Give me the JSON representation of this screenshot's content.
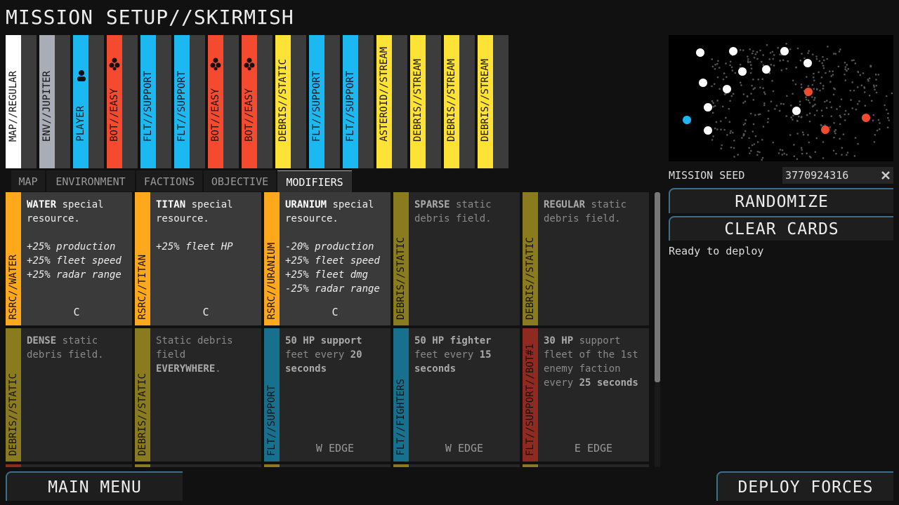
{
  "title": "MISSION SETUP//SKIRMISH",
  "deck": [
    {
      "label": "MAP//REGULAR",
      "color": "#ffffff"
    },
    {
      "label": "ENV//JUPITER",
      "color": "#a9adb5"
    },
    {
      "label": "PLAYER",
      "color": "#1cb8f2",
      "icon": "player"
    },
    {
      "label": "BOT//EASY",
      "color": "#f44a30",
      "icon": "bot"
    },
    {
      "label": "FLT//SUPPORT",
      "color": "#1cb8f2"
    },
    {
      "label": "FLT//SUPPORT",
      "color": "#1cb8f2"
    },
    {
      "label": "BOT//EASY",
      "color": "#f44a30",
      "icon": "bot"
    },
    {
      "label": "BOT//EASY",
      "color": "#f44a30",
      "icon": "bot"
    },
    {
      "label": "DEBRIS//STATIC",
      "color": "#ffe236"
    },
    {
      "label": "FLT//SUPPORT",
      "color": "#1cb8f2"
    },
    {
      "label": "FLT//SUPPORT",
      "color": "#1cb8f2"
    },
    {
      "label": "ASTEROID//STREAM",
      "color": "#ffe236"
    },
    {
      "label": "DEBRIS//STREAM",
      "color": "#ffe236"
    },
    {
      "label": "DEBRIS//STREAM",
      "color": "#ffe236"
    },
    {
      "label": "DEBRIS//STREAM",
      "color": "#ffe236"
    }
  ],
  "tabs": [
    "MAP",
    "ENVIRONMENT",
    "FACTIONS",
    "OBJECTIVE",
    "MODIFIERS"
  ],
  "active_tab": 4,
  "cards": [
    {
      "side": "RSRC//WATER",
      "color": "#ffa81c",
      "active": true,
      "body": [
        {
          "text": "WATER",
          "bold": true
        },
        {
          "text": " special resource."
        }
      ],
      "effects": [
        "+25% production",
        "+25% fleet speed",
        "+25% radar range"
      ],
      "footer": "C"
    },
    {
      "side": "RSRC//TITAN",
      "color": "#ffa81c",
      "active": true,
      "body": [
        {
          "text": "TITAN",
          "bold": true
        },
        {
          "text": " special resource."
        }
      ],
      "effects": [
        "+25% fleet HP"
      ],
      "footer": "C"
    },
    {
      "side": "RSRC//URANIUM",
      "color": "#ffa81c",
      "active": true,
      "body": [
        {
          "text": "URANIUM",
          "bold": true
        },
        {
          "text": " special resource."
        }
      ],
      "effects": [
        "-20% production",
        "+25% fleet speed",
        "+25% fleet dmg",
        "-25% radar range"
      ],
      "footer": "C"
    },
    {
      "side": "DEBRIS//STATIC",
      "color": "#8a7b1e",
      "body": [
        {
          "text": "SPARSE",
          "bold": true
        },
        {
          "text": " static debris field."
        }
      ]
    },
    {
      "side": "DEBRIS//STATIC",
      "color": "#8a7b1e",
      "body": [
        {
          "text": "REGULAR",
          "bold": true
        },
        {
          "text": " static debris field."
        }
      ]
    },
    {
      "side": "DEBRIS//STATIC",
      "color": "#8a7b1e",
      "body": [
        {
          "text": "DENSE",
          "bold": true
        },
        {
          "text": " static debris field."
        }
      ]
    },
    {
      "side": "DEBRIS//STATIC",
      "color": "#8a7b1e",
      "body": [
        {
          "text": "Static debris field "
        },
        {
          "text": "EVERYWHERE",
          "bold": true
        },
        {
          "text": "."
        }
      ]
    },
    {
      "side": "FLT//SUPPORT",
      "color": "#17718e",
      "body": [
        {
          "text": "50 HP support",
          "bold": true
        },
        {
          "text": " feet every "
        },
        {
          "text": "20 seconds",
          "bold": true
        }
      ],
      "footer": "W EDGE"
    },
    {
      "side": "FLT//FIGHTERS",
      "color": "#17718e",
      "body": [
        {
          "text": "50 HP fighter",
          "bold": true
        },
        {
          "text": " feet every "
        },
        {
          "text": "15 seconds",
          "bold": true
        }
      ],
      "footer": "W EDGE"
    },
    {
      "side": "FLT//SUPPORT//BOT#1",
      "color": "#8e2a20",
      "body": [
        {
          "text": "30 HP",
          "bold": true
        },
        {
          "text": " support fleet of the 1st enemy faction every "
        },
        {
          "text": "25 seconds",
          "bold": true
        }
      ],
      "footer": "E EDGE"
    }
  ],
  "seed_label": "MISSION SEED",
  "seed": "3770924316",
  "buttons": {
    "randomize": "RANDOMIZE",
    "clear": "CLEAR CARDS",
    "main_menu": "MAIN MENU",
    "deploy": "DEPLOY FORCES"
  },
  "status": "Ready to deploy"
}
